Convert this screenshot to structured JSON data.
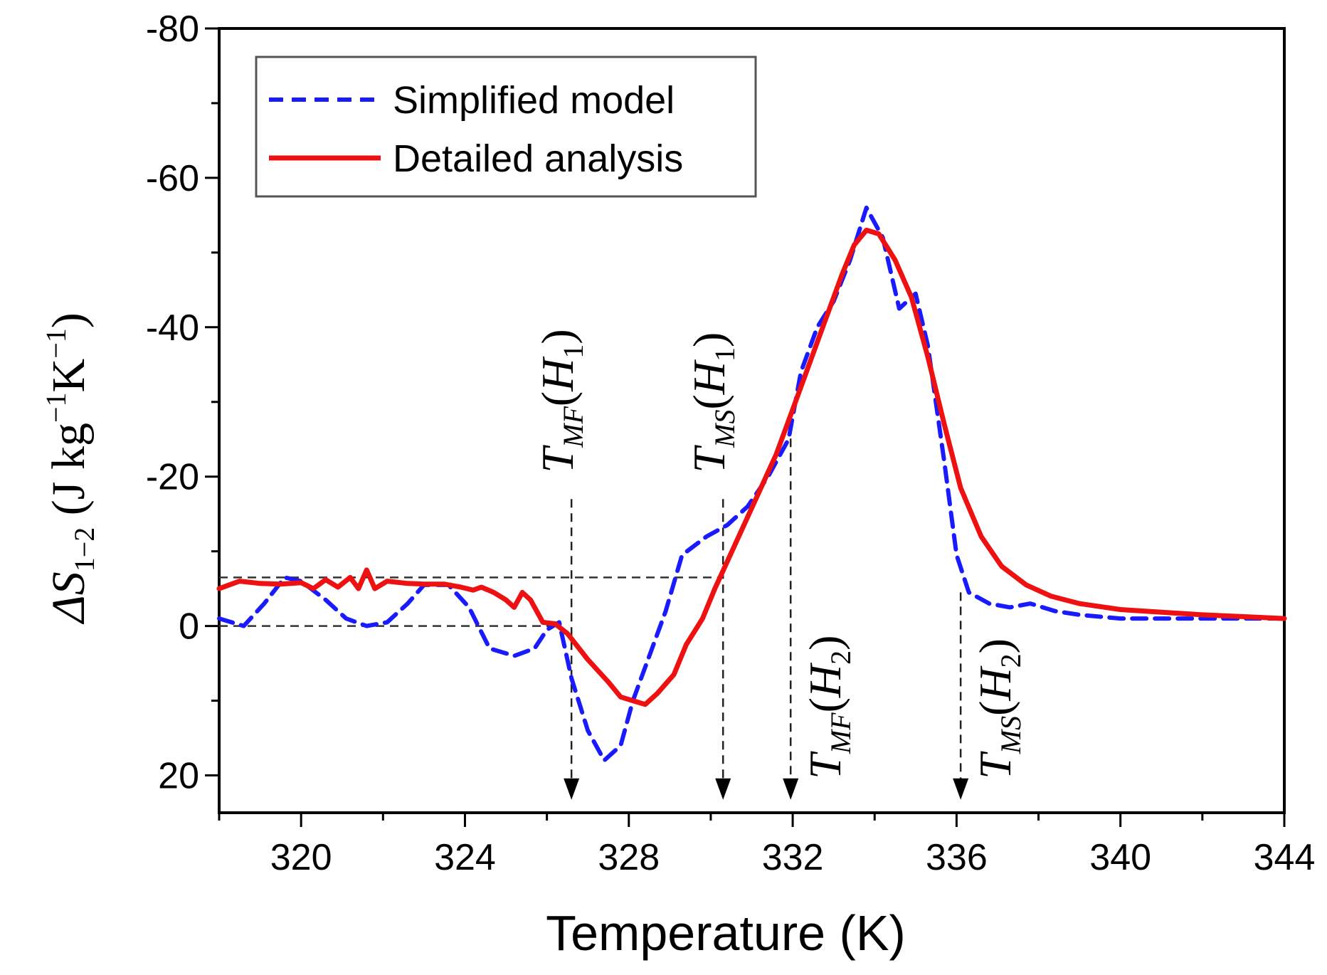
{
  "chart_data": {
    "type": "line",
    "title": "",
    "xlabel": "Temperature (K)",
    "ylabel": {
      "main": "ΔS",
      "sub": "1−2",
      "unit_open": " (J kg",
      "exp1": "−1",
      "unit_mid": "K",
      "exp2": "−1",
      "unit_close": ")"
    },
    "xlim": [
      318,
      344
    ],
    "ylim": [
      25,
      -80
    ],
    "y_inverted": true,
    "x_ticks": [
      320,
      324,
      328,
      332,
      336,
      340,
      344
    ],
    "x_tick_labels": [
      "320",
      "324",
      "328",
      "332",
      "336",
      "340",
      "344"
    ],
    "y_ticks": [
      -80,
      -60,
      -40,
      -20,
      0,
      20
    ],
    "y_tick_labels": [
      "-80",
      "-60",
      "-40",
      "-20",
      "0",
      "20"
    ],
    "legend_position": "top-left",
    "series": [
      {
        "name": "Simplified model",
        "color": "#1a1aff",
        "style": "dashed",
        "points": [
          [
            318,
            -1
          ],
          [
            318.6,
            0
          ],
          [
            319.1,
            -3
          ],
          [
            319.6,
            -6.5
          ],
          [
            320,
            -6
          ],
          [
            320.6,
            -3.5
          ],
          [
            321.1,
            -1
          ],
          [
            321.6,
            0
          ],
          [
            322.1,
            -0.5
          ],
          [
            322.6,
            -3
          ],
          [
            323,
            -5.5
          ],
          [
            323.6,
            -5.5
          ],
          [
            324.1,
            -2.5
          ],
          [
            324.6,
            3
          ],
          [
            325.2,
            4
          ],
          [
            325.7,
            3
          ],
          [
            326,
            0.5
          ],
          [
            326.3,
            -0.5
          ],
          [
            326.6,
            7
          ],
          [
            327,
            14
          ],
          [
            327.4,
            18
          ],
          [
            327.8,
            16
          ],
          [
            328.1,
            10
          ],
          [
            328.5,
            4
          ],
          [
            328.9,
            -2
          ],
          [
            329.3,
            -9.5
          ],
          [
            329.9,
            -12
          ],
          [
            330.4,
            -13.5
          ],
          [
            330.9,
            -16
          ],
          [
            331.4,
            -20
          ],
          [
            331.9,
            -25
          ],
          [
            332.2,
            -34
          ],
          [
            332.6,
            -40
          ],
          [
            333,
            -43.5
          ],
          [
            333.4,
            -49
          ],
          [
            333.8,
            -56
          ],
          [
            334.2,
            -52
          ],
          [
            334.6,
            -42.5
          ],
          [
            335,
            -44.5
          ],
          [
            335.3,
            -37.5
          ],
          [
            335.7,
            -22
          ],
          [
            336,
            -9.5
          ],
          [
            336.3,
            -4.5
          ],
          [
            336.8,
            -3
          ],
          [
            337.3,
            -2.5
          ],
          [
            337.8,
            -3
          ],
          [
            338.4,
            -2
          ],
          [
            339,
            -1.5
          ],
          [
            340,
            -1
          ],
          [
            342,
            -1
          ],
          [
            344,
            -1
          ]
        ]
      },
      {
        "name": "Detailed analysis",
        "color": "#ee1111",
        "style": "solid",
        "points": [
          [
            318,
            -5
          ],
          [
            318.5,
            -6
          ],
          [
            319,
            -5.7
          ],
          [
            319.5,
            -5.6
          ],
          [
            320,
            -5.8
          ],
          [
            320.3,
            -5
          ],
          [
            320.6,
            -6.2
          ],
          [
            320.9,
            -5.2
          ],
          [
            321.2,
            -6.5
          ],
          [
            321.4,
            -5
          ],
          [
            321.6,
            -7.5
          ],
          [
            321.8,
            -5
          ],
          [
            322.1,
            -6
          ],
          [
            322.6,
            -5.7
          ],
          [
            323,
            -5.6
          ],
          [
            323.5,
            -5.6
          ],
          [
            323.9,
            -5.2
          ],
          [
            324.2,
            -4.8
          ],
          [
            324.4,
            -5.2
          ],
          [
            324.7,
            -4.5
          ],
          [
            325,
            -3.5
          ],
          [
            325.2,
            -2.5
          ],
          [
            325.4,
            -4.5
          ],
          [
            325.6,
            -3.5
          ],
          [
            325.9,
            -0.5
          ],
          [
            326.2,
            -0.3
          ],
          [
            326.5,
            1
          ],
          [
            327,
            4.5
          ],
          [
            327.5,
            7.5
          ],
          [
            327.8,
            9.5
          ],
          [
            328.1,
            10
          ],
          [
            328.4,
            10.5
          ],
          [
            328.7,
            9
          ],
          [
            329.1,
            6.5
          ],
          [
            329.4,
            2.5
          ],
          [
            329.8,
            -1
          ],
          [
            330.1,
            -5
          ],
          [
            330.6,
            -11
          ],
          [
            331.1,
            -17
          ],
          [
            331.6,
            -23
          ],
          [
            332,
            -29
          ],
          [
            332.4,
            -35
          ],
          [
            332.8,
            -41
          ],
          [
            333.2,
            -47
          ],
          [
            333.5,
            -51
          ],
          [
            333.8,
            -53
          ],
          [
            334.1,
            -52.5
          ],
          [
            334.5,
            -49
          ],
          [
            334.9,
            -44
          ],
          [
            335.3,
            -36
          ],
          [
            335.7,
            -27
          ],
          [
            336.1,
            -18.5
          ],
          [
            336.6,
            -12
          ],
          [
            337.1,
            -8
          ],
          [
            337.7,
            -5.5
          ],
          [
            338.3,
            -4
          ],
          [
            339,
            -3
          ],
          [
            340,
            -2.2
          ],
          [
            342,
            -1.5
          ],
          [
            344,
            -1
          ]
        ]
      }
    ],
    "reference_lines": [
      {
        "name": "0-baseline",
        "from": [
          318,
          0
        ],
        "to": [
          326.2,
          0
        ]
      },
      {
        "name": "level-baseline",
        "from": [
          318,
          -6.5
        ],
        "to": [
          330.3,
          -6.5
        ]
      }
    ],
    "markers": [
      {
        "name": "tmf-h1",
        "x": 326.6,
        "y_from": -17,
        "label_T": "T",
        "label_sub": "MF",
        "label_rest": "(H",
        "label_h_sub": "1",
        "label_close": ")"
      },
      {
        "name": "tms-h1",
        "x": 330.3,
        "y_from": -17,
        "label_T": "T",
        "label_sub": "MS",
        "label_rest": "(H",
        "label_h_sub": "1",
        "label_close": ")"
      },
      {
        "name": "tmf-h2",
        "x": 331.95,
        "y_from": -27,
        "label_T": "T",
        "label_sub": "MF",
        "label_rest": "(H",
        "label_h_sub": "2",
        "label_close": ")"
      },
      {
        "name": "tms-h2",
        "x": 336.1,
        "y_from": -4.5,
        "label_T": "T",
        "label_sub": "MS",
        "label_rest": "(H",
        "label_h_sub": "2",
        "label_close": ")"
      }
    ]
  }
}
